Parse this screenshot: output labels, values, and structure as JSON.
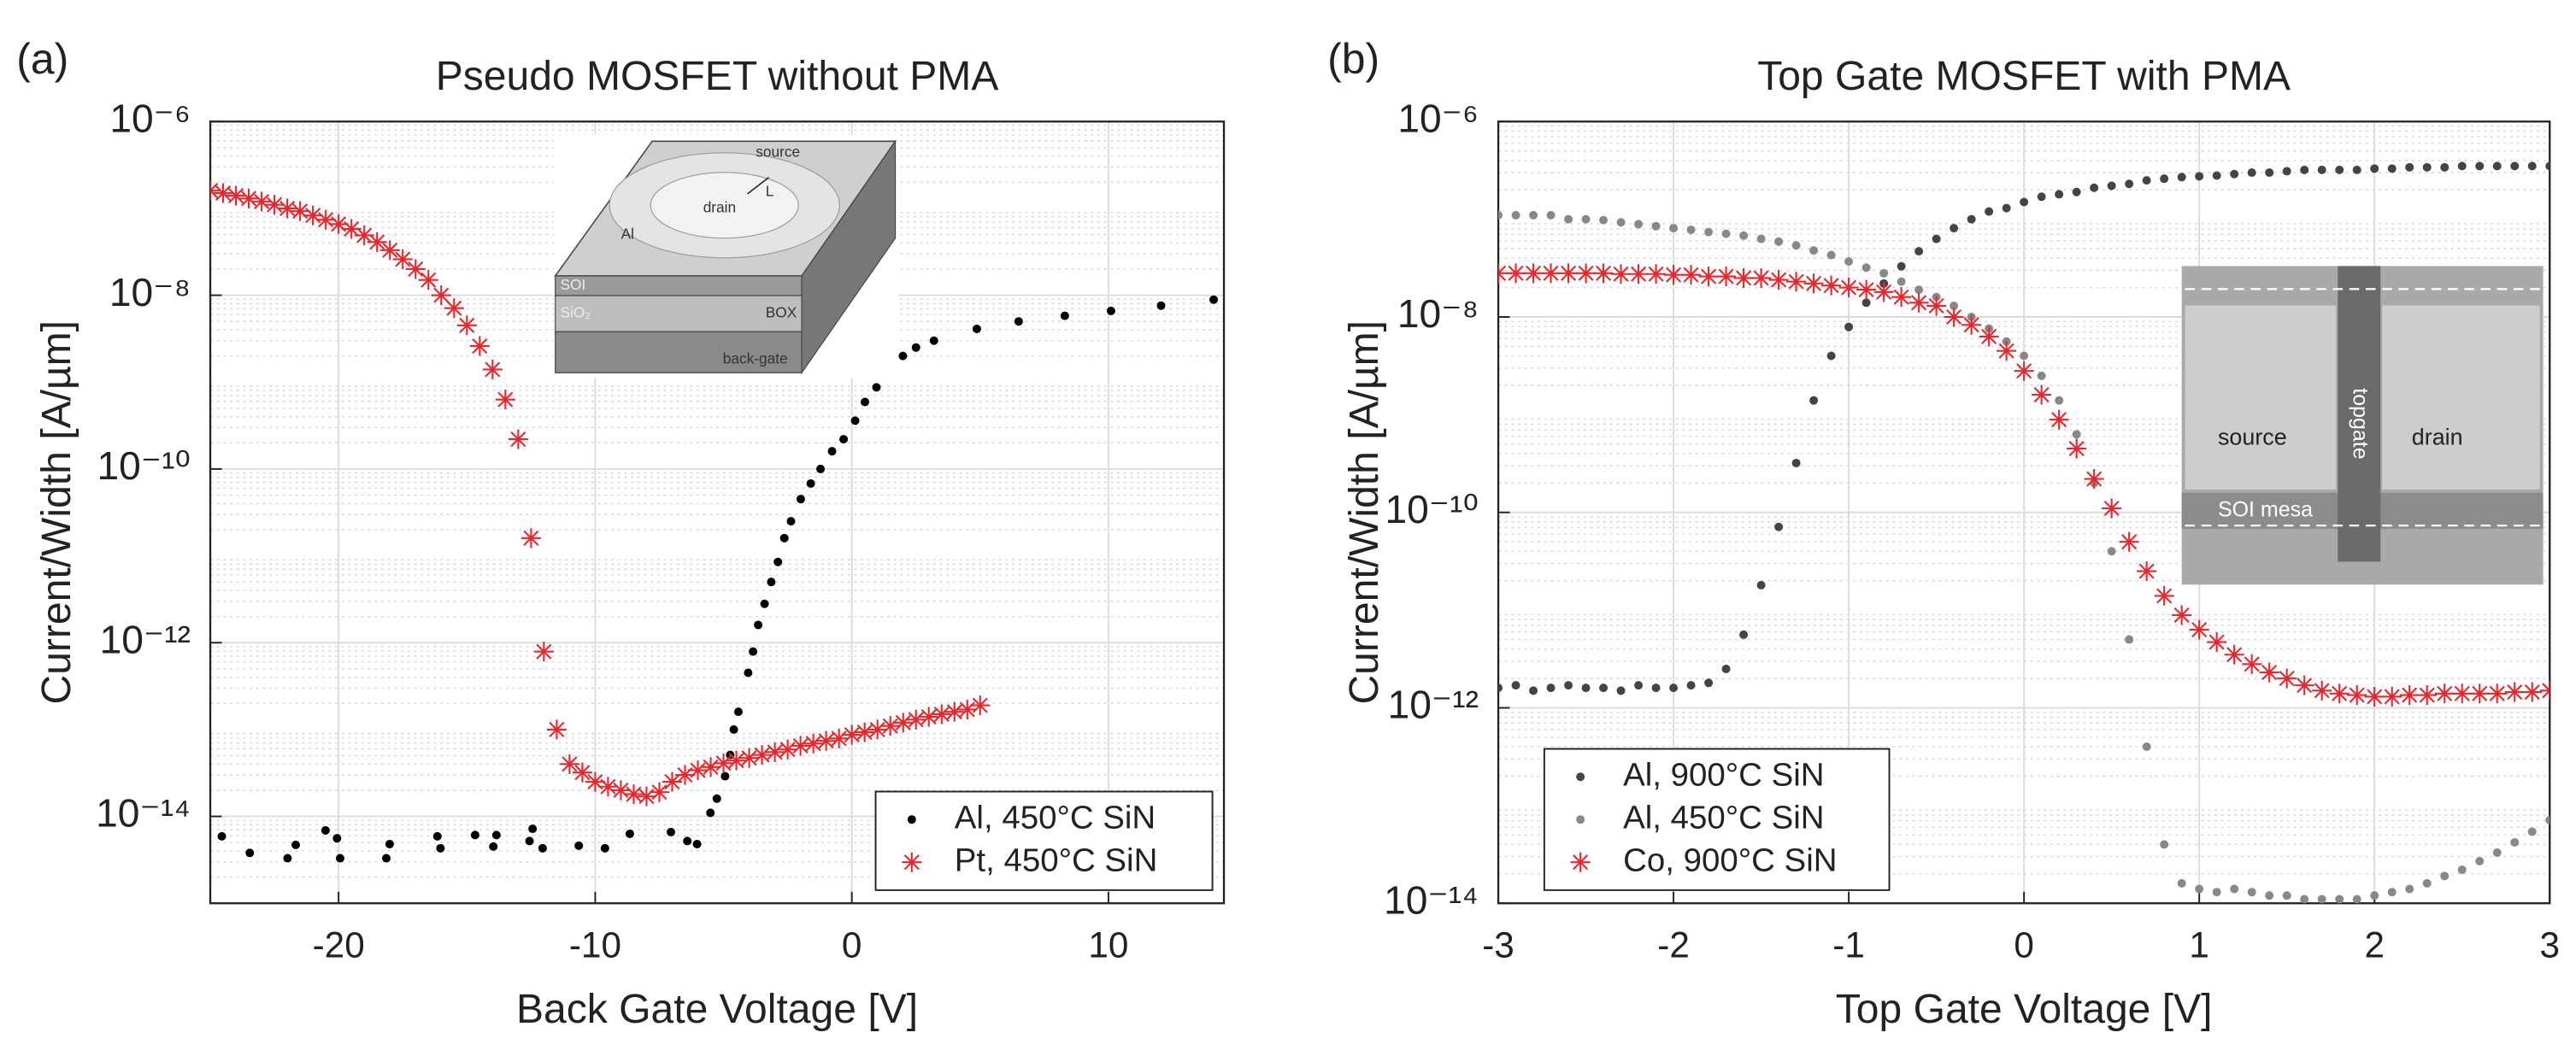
{
  "chart_data": [
    {
      "type": "scatter",
      "panel": "(a)",
      "title": "Pseudo MOSFET without PMA",
      "xlabel": "Back Gate Voltage [V]",
      "ylabel": "Current/Width [A/µm]",
      "xlim": [
        -25,
        14.5
      ],
      "xticks": [
        -20,
        -10,
        0,
        10
      ],
      "ylim": [
        1e-15,
        1e-06
      ],
      "log_y": true,
      "yticks": [
        {
          "value": 1e-06,
          "label": "10⁻⁶"
        },
        {
          "value": 1e-08,
          "label": "10⁻⁸"
        },
        {
          "value": 1e-10,
          "label": "10⁻¹⁰"
        },
        {
          "value": 1e-12,
          "label": "10⁻¹²"
        },
        {
          "value": 1e-14,
          "label": "10⁻¹⁴"
        }
      ],
      "grid": true,
      "minor_grid": true,
      "legend": "lower right",
      "inset_labels": [
        "source",
        "L",
        "drain",
        "Al",
        "SOI",
        "SiO₂",
        "BOX",
        "back-gate"
      ],
      "series": [
        {
          "name": "Al, 450°C SiN",
          "color": "#000000",
          "marker": "dot",
          "x": [
            -24.55,
            -23.46,
            -21.99,
            -21.67,
            -20.51,
            -20.06,
            -19.94,
            -18.14,
            -18.01,
            -16.15,
            -16.03,
            -14.68,
            -13.97,
            -13.85,
            -12.56,
            -12.44,
            -12.05,
            -10.64,
            -9.62,
            -8.65,
            -7.05,
            -6.41,
            -6.03,
            -5.51,
            -5.26,
            -4.94,
            -4.74,
            -4.6,
            -4.42,
            -4.04,
            -3.85,
            -3.65,
            -3.4,
            -3.14,
            -2.88,
            -2.63,
            -2.37,
            -1.99,
            -1.6,
            -1.22,
            -0.77,
            -0.32,
            0.13,
            0.51,
            0.96,
            1.47,
            1.99,
            2.5,
            3.2,
            4.87,
            6.5,
            8.3,
            10.1,
            12.05,
            14.1
          ],
          "values": [
            5.9e-15,
            3.8e-15,
            3.3e-15,
            4.7e-15,
            6.9e-15,
            5.6e-15,
            3.3e-15,
            3.3e-15,
            4.8e-15,
            5.9e-15,
            4.3e-15,
            6.1e-15,
            4.5e-15,
            6.1e-15,
            5.2e-15,
            7.2e-15,
            4.3e-15,
            4.6e-15,
            4.3e-15,
            6.3e-15,
            6.6e-15,
            5.2e-15,
            4.8e-15,
            1.1e-14,
            1.6e-14,
            2.9e-14,
            5.1e-14,
            1e-13,
            1.6e-13,
            4.5e-13,
            7.9e-13,
            1.6e-12,
            2.8e-12,
            5e-12,
            8.5e-12,
            1.6e-11,
            2.5e-11,
            4.5e-11,
            6.8e-11,
            1e-10,
            1.6e-10,
            2.2e-10,
            3.6e-10,
            5.9e-10,
            8.7e-10,
            1.35e-09,
            2e-09,
            2.5e-09,
            3e-09,
            4.1e-09,
            5e-09,
            5.8e-09,
            6.6e-09,
            7.6e-09,
            8.9e-09
          ]
        },
        {
          "name": "Pt, 450°C SiN",
          "color": "#e8262b",
          "marker": "asterisk",
          "x": [
            -25,
            -24.5,
            -24,
            -23.5,
            -23,
            -22.5,
            -22,
            -21.5,
            -21,
            -20.5,
            -20,
            -19.5,
            -19,
            -18.5,
            -18,
            -17.5,
            -17,
            -16.5,
            -16,
            -15.5,
            -15,
            -14.5,
            -14,
            -13.5,
            -13,
            -12.5,
            -12,
            -11.5,
            -11,
            -10.5,
            -10,
            -9.5,
            -9,
            -8.5,
            -8,
            -7.5,
            -7,
            -6.5,
            -6,
            -5.5,
            -5,
            -4.5,
            -4,
            -3.5,
            -3,
            -2.5,
            -2,
            -1.5,
            -1,
            -0.5,
            0,
            0.5,
            1,
            1.5,
            2,
            2.5,
            3,
            3.5,
            4,
            4.5,
            5
          ],
          "values": [
            1.6e-07,
            1.5e-07,
            1.4e-07,
            1.3e-07,
            1.2e-07,
            1.1e-07,
            1e-07,
            9.3e-08,
            8.3e-08,
            7.4e-08,
            6.6e-08,
            5.8e-08,
            4.9e-08,
            4.1e-08,
            3.3e-08,
            2.6e-08,
            2e-08,
            1.5e-08,
            1e-08,
            7.1e-09,
            4.5e-09,
            2.6e-09,
            1.4e-09,
            6.3e-10,
            2.2e-10,
            1.6e-11,
            7.9e-13,
            1e-13,
            4e-14,
            3.2e-14,
            2.5e-14,
            2.2e-14,
            2e-14,
            1.8e-14,
            1.7e-14,
            1.9e-14,
            2.5e-14,
            3e-14,
            3.4e-14,
            3.7e-14,
            4.1e-14,
            4.4e-14,
            4.7e-14,
            5.1e-14,
            5.5e-14,
            5.9e-14,
            6.5e-14,
            6.9e-14,
            7.4e-14,
            7.9e-14,
            8.7e-14,
            9.3e-14,
            1e-13,
            1.1e-13,
            1.2e-13,
            1.3e-13,
            1.4e-13,
            1.5e-13,
            1.6e-13,
            1.7e-13,
            1.9e-13
          ]
        }
      ]
    },
    {
      "type": "scatter",
      "panel": "(b)",
      "title": "Top Gate MOSFET with PMA",
      "xlabel": "Top Gate Voltage [V]",
      "ylabel": "Current/Width [A/µm]",
      "xlim": [
        -3,
        3
      ],
      "xticks": [
        -3,
        -2,
        -1,
        0,
        1,
        2,
        3
      ],
      "ylim": [
        1e-14,
        1e-06
      ],
      "log_y": true,
      "yticks": [
        {
          "value": 1e-06,
          "label": "10⁻⁶"
        },
        {
          "value": 1e-08,
          "label": "10⁻⁸"
        },
        {
          "value": 1e-10,
          "label": "10⁻¹⁰"
        },
        {
          "value": 1e-12,
          "label": "10⁻¹²"
        },
        {
          "value": 1e-14,
          "label": "10⁻¹⁴"
        }
      ],
      "grid": true,
      "minor_grid": true,
      "legend": "lower left",
      "inset_labels": [
        "source",
        "topgate",
        "drain",
        "SOI mesa"
      ],
      "series": [
        {
          "name": "Al, 900°C SiN",
          "color": "#444444",
          "marker": "dot",
          "x": [
            -3,
            -2.9,
            -2.8,
            -2.7,
            -2.6,
            -2.5,
            -2.4,
            -2.3,
            -2.2,
            -2.1,
            -2,
            -1.9,
            -1.8,
            -1.7,
            -1.6,
            -1.5,
            -1.4,
            -1.3,
            -1.2,
            -1.1,
            -1,
            -0.9,
            -0.8,
            -0.7,
            -0.6,
            -0.5,
            -0.4,
            -0.3,
            -0.2,
            -0.1,
            0,
            0.1,
            0.2,
            0.3,
            0.4,
            0.5,
            0.6,
            0.7,
            0.8,
            0.9,
            1,
            1.1,
            1.2,
            1.3,
            1.4,
            1.5,
            1.6,
            1.7,
            1.8,
            1.9,
            2,
            2.1,
            2.2,
            2.3,
            2.4,
            2.5,
            2.6,
            2.7,
            2.8,
            2.9,
            3
          ],
          "values": [
            1.6e-12,
            1.7e-12,
            1.5e-12,
            1.6e-12,
            1.7e-12,
            1.6e-12,
            1.6e-12,
            1.5e-12,
            1.7e-12,
            1.6e-12,
            1.6e-12,
            1.7e-12,
            1.8e-12,
            2.5e-12,
            5.6e-12,
            1.8e-11,
            7.1e-11,
            3.2e-10,
            1.4e-09,
            4e-09,
            7.9e-09,
            1.4e-08,
            2.2e-08,
            3.3e-08,
            4.7e-08,
            6.3e-08,
            8.1e-08,
            1e-07,
            1.2e-07,
            1.3e-07,
            1.5e-07,
            1.7e-07,
            1.8e-07,
            1.9e-07,
            2.1e-07,
            2.2e-07,
            2.3e-07,
            2.5e-07,
            2.6e-07,
            2.7e-07,
            2.75e-07,
            2.8e-07,
            2.9e-07,
            3e-07,
            3e-07,
            3.1e-07,
            3.2e-07,
            3.2e-07,
            3.2e-07,
            3.2e-07,
            3.3e-07,
            3.3e-07,
            3.4e-07,
            3.4e-07,
            3.4e-07,
            3.5e-07,
            3.5e-07,
            3.5e-07,
            3.5e-07,
            3.5e-07,
            3.5e-07
          ]
        },
        {
          "name": "Al, 450°C SiN",
          "color": "#888888",
          "marker": "dot",
          "x": [
            -3,
            -2.9,
            -2.8,
            -2.7,
            -2.6,
            -2.5,
            -2.4,
            -2.3,
            -2.2,
            -2.1,
            -2,
            -1.9,
            -1.8,
            -1.7,
            -1.6,
            -1.5,
            -1.4,
            -1.3,
            -1.2,
            -1.1,
            -1,
            -0.9,
            -0.8,
            -0.7,
            -0.6,
            -0.5,
            -0.4,
            -0.3,
            -0.2,
            -0.1,
            0,
            0.1,
            0.2,
            0.3,
            0.4,
            0.5,
            0.6,
            0.7,
            0.8,
            0.9,
            1,
            1.1,
            1.2,
            1.3,
            1.4,
            1.5,
            1.6,
            1.7,
            1.8,
            1.9,
            2,
            2.1,
            2.2,
            2.3,
            2.4,
            2.5,
            2.6,
            2.7,
            2.8,
            2.9,
            3
          ],
          "values": [
            1.1e-07,
            1.1e-07,
            1.1e-07,
            1.1e-07,
            1e-07,
            1e-07,
            9.8e-08,
            9.3e-08,
            8.9e-08,
            8.5e-08,
            8.1e-08,
            7.8e-08,
            7.4e-08,
            7.1e-08,
            6.8e-08,
            6.3e-08,
            5.9e-08,
            5.4e-08,
            4.8e-08,
            4.3e-08,
            3.7e-08,
            3.2e-08,
            2.8e-08,
            2.3e-08,
            1.9e-08,
            1.6e-08,
            1.3e-08,
            1e-08,
            7.6e-09,
            5.6e-09,
            4e-09,
            2.5e-09,
            1.4e-09,
            6.3e-10,
            2e-10,
            4e-11,
            5e-12,
            4e-13,
            4e-14,
            1.6e-14,
            1.4e-14,
            1.3e-14,
            1.4e-14,
            1.3e-14,
            1.2e-14,
            1.2e-14,
            1.1e-14,
            1.1e-14,
            1.1e-14,
            1.1e-14,
            1.2e-14,
            1.3e-14,
            1.4e-14,
            1.6e-14,
            1.9e-14,
            2.2e-14,
            2.7e-14,
            3.3e-14,
            4.2e-14,
            5.4e-14,
            7.1e-14
          ]
        },
        {
          "name": "Co, 900°C SiN",
          "color": "#e8262b",
          "marker": "asterisk",
          "x": [
            -3,
            -2.9,
            -2.8,
            -2.7,
            -2.6,
            -2.5,
            -2.4,
            -2.3,
            -2.2,
            -2.1,
            -2,
            -1.9,
            -1.8,
            -1.7,
            -1.6,
            -1.5,
            -1.4,
            -1.3,
            -1.2,
            -1.1,
            -1,
            -0.9,
            -0.8,
            -0.7,
            -0.6,
            -0.5,
            -0.4,
            -0.3,
            -0.2,
            -0.1,
            0,
            0.1,
            0.2,
            0.3,
            0.4,
            0.5,
            0.6,
            0.7,
            0.8,
            0.9,
            1,
            1.1,
            1.2,
            1.3,
            1.4,
            1.5,
            1.6,
            1.7,
            1.8,
            1.9,
            2,
            2.1,
            2.2,
            2.3,
            2.4,
            2.5,
            2.6,
            2.7,
            2.8,
            2.9,
            3
          ],
          "values": [
            2.8e-08,
            2.8e-08,
            2.8e-08,
            2.8e-08,
            2.8e-08,
            2.8e-08,
            2.8e-08,
            2.75e-08,
            2.75e-08,
            2.75e-08,
            2.7e-08,
            2.7e-08,
            2.6e-08,
            2.6e-08,
            2.5e-08,
            2.5e-08,
            2.4e-08,
            2.3e-08,
            2.2e-08,
            2.1e-08,
            2e-08,
            1.9e-08,
            1.8e-08,
            1.6e-08,
            1.4e-08,
            1.3e-08,
            1e-08,
            8.3e-09,
            6.3e-09,
            4.5e-09,
            2.8e-09,
            1.6e-09,
            8.9e-10,
            4.5e-10,
            2.2e-10,
            1.1e-10,
            5e-11,
            2.5e-11,
            1.4e-11,
            8.9e-12,
            6.3e-12,
            4.7e-12,
            3.5e-12,
            2.8e-12,
            2.3e-12,
            2e-12,
            1.7e-12,
            1.5e-12,
            1.4e-12,
            1.35e-12,
            1.3e-12,
            1.3e-12,
            1.35e-12,
            1.35e-12,
            1.4e-12,
            1.4e-12,
            1.4e-12,
            1.4e-12,
            1.45e-12,
            1.45e-12,
            1.5e-12
          ]
        }
      ]
    }
  ]
}
